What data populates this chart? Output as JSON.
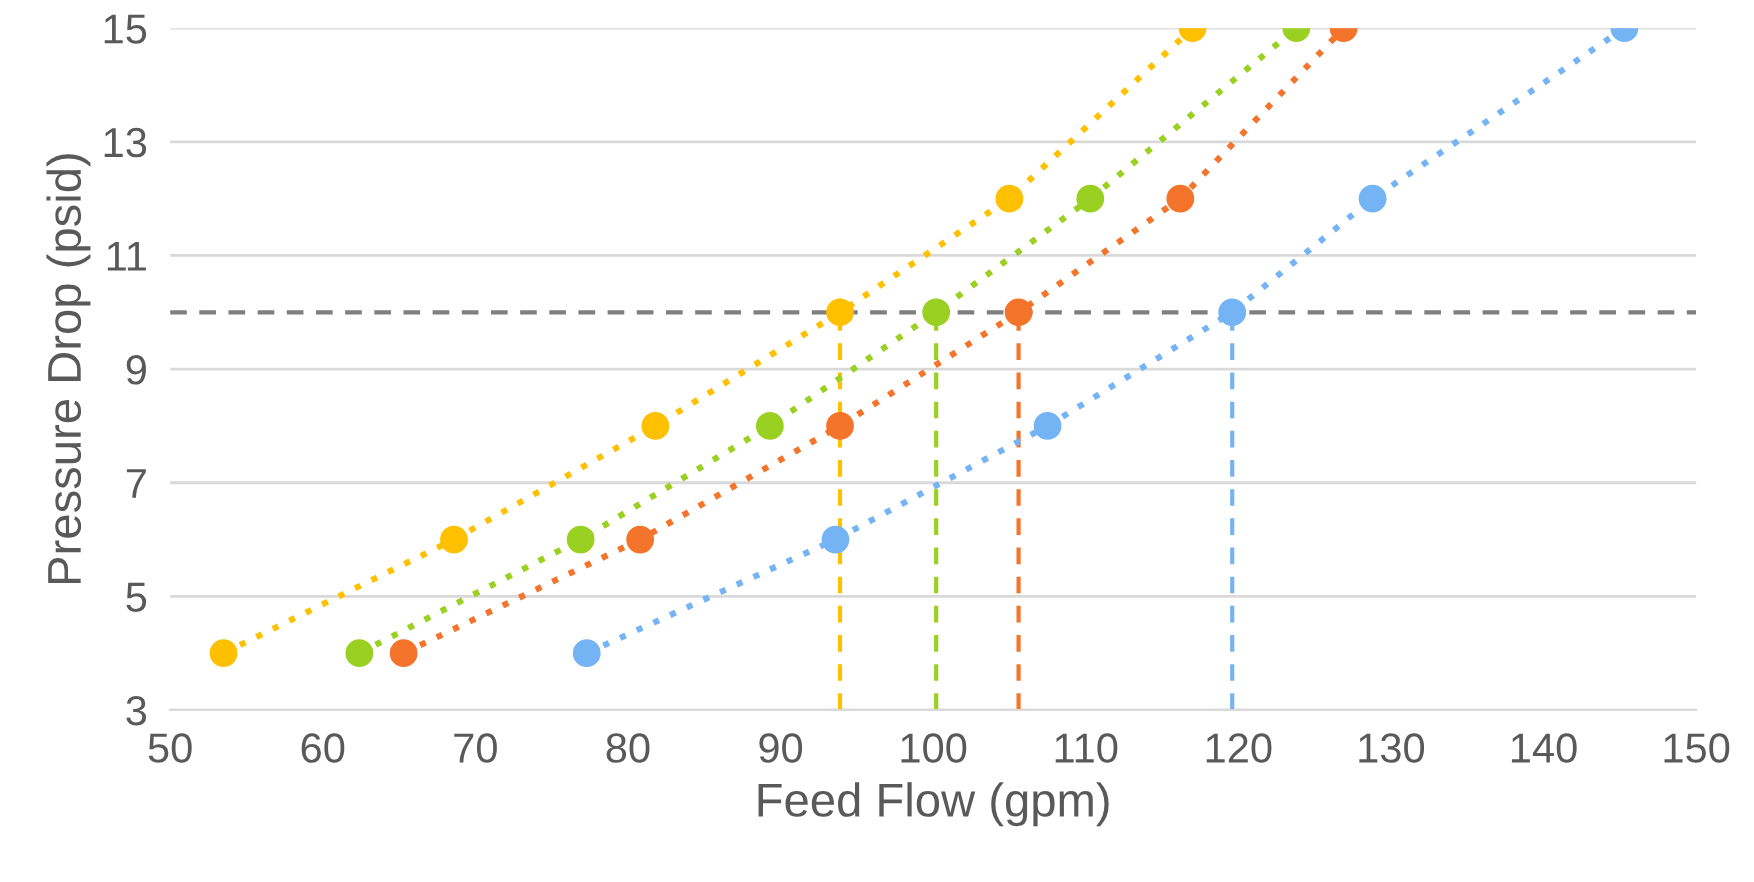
{
  "chart_data": {
    "type": "line",
    "xlabel": "Feed Flow (gpm)",
    "ylabel": "Pressure Drop (psid)",
    "xlim": [
      50,
      150
    ],
    "xticks": [
      50,
      60,
      70,
      80,
      90,
      100,
      110,
      120,
      130,
      140,
      150
    ],
    "ylim": [
      3,
      15
    ],
    "yticks": [
      3,
      5,
      7,
      9,
      11,
      13,
      15
    ],
    "grid": "y",
    "marker": "circle",
    "line_style": "dotted",
    "legend": false,
    "series": [
      {
        "color": "#ffc000",
        "x": [
          53.5,
          68.6,
          81.8,
          93.9,
          105.0,
          117.0
        ],
        "values": [
          4,
          6,
          8,
          10,
          12,
          15
        ]
      },
      {
        "color": "#99d022",
        "x": [
          62.4,
          76.9,
          89.3,
          100.2,
          110.3,
          123.8
        ],
        "values": [
          4,
          6,
          8,
          10,
          12,
          15
        ]
      },
      {
        "color": "#f4742b",
        "x": [
          65.3,
          80.8,
          93.9,
          105.6,
          116.2,
          126.9
        ],
        "values": [
          4,
          6,
          8,
          10,
          12,
          15
        ]
      },
      {
        "color": "#74b4f4",
        "x": [
          77.3,
          93.6,
          107.5,
          119.6,
          128.8,
          145.3
        ],
        "values": [
          4,
          6,
          8,
          10,
          12,
          15
        ]
      }
    ],
    "ref_lines": [
      {
        "axis": "y",
        "value": 10,
        "color": "#7f7f7f",
        "line_style": "dashed"
      },
      {
        "axis": "x",
        "value": 93.9,
        "color": "#ffc000",
        "line_style": "dashed"
      },
      {
        "axis": "x",
        "value": 100.2,
        "color": "#99d022",
        "line_style": "dashed"
      },
      {
        "axis": "x",
        "value": 105.6,
        "color": "#f4742b",
        "line_style": "dashed"
      },
      {
        "axis": "x",
        "value": 119.6,
        "color": "#74b4f4",
        "line_style": "dashed"
      }
    ]
  }
}
